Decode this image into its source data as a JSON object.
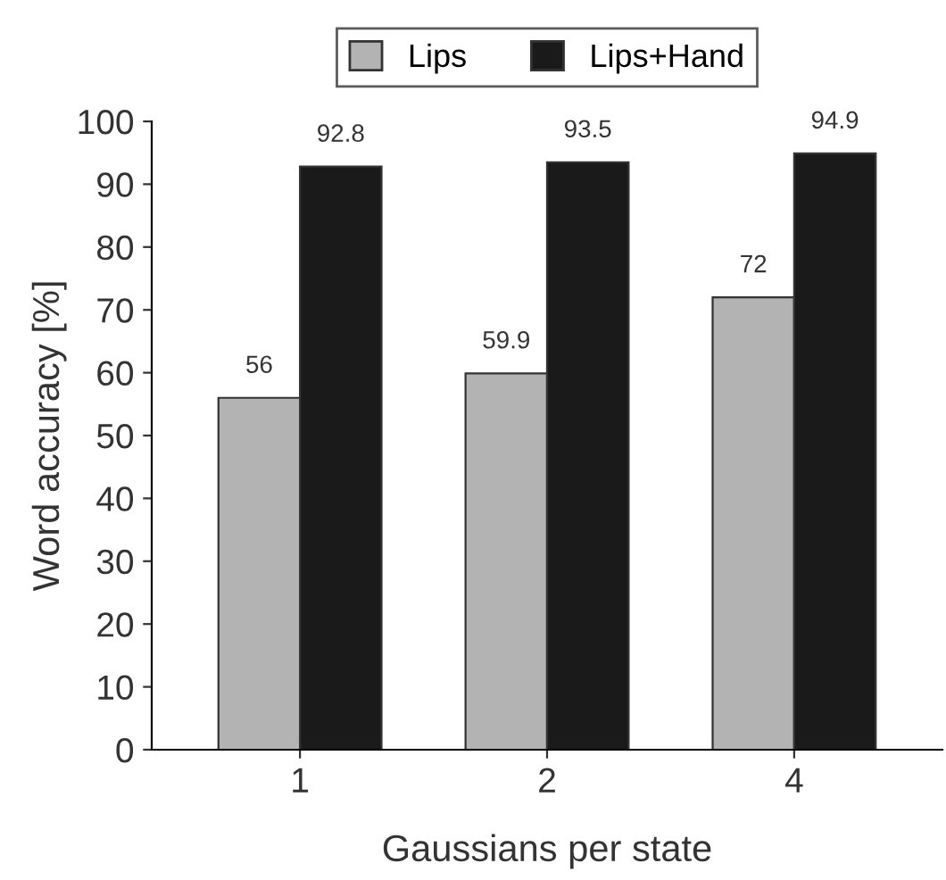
{
  "chart_data": {
    "type": "bar",
    "xlabel": "Gaussians per state",
    "ylabel": "Word accuracy [%]",
    "categories": [
      "1",
      "2",
      "4"
    ],
    "series": [
      {
        "name": "Lips",
        "color": "#b3b3b3",
        "values": [
          56,
          59.9,
          72
        ]
      },
      {
        "name": "Lips+Hand",
        "color": "#1a1a1a",
        "values": [
          92.8,
          93.5,
          94.9
        ]
      }
    ],
    "ylim": [
      0,
      100
    ],
    "yticks": [
      0,
      10,
      20,
      30,
      40,
      50,
      60,
      70,
      80,
      90,
      100
    ],
    "data_labels": true,
    "legend": "top",
    "grid": false
  }
}
